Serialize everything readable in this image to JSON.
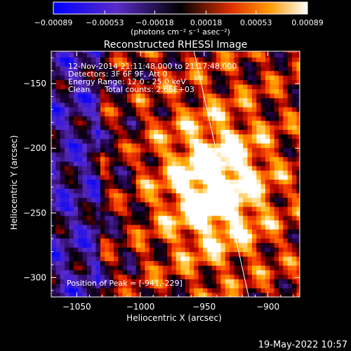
{
  "chart_data": {
    "type": "heatmap",
    "title": "Reconstructed RHESSI Image",
    "xlabel": "Heliocentric X (arcsec)",
    "ylabel": "Heliocentric Y (arcsec)",
    "xlim": [
      -1070,
      -875
    ],
    "ylim": [
      -315,
      -125
    ],
    "x_ticks": [
      -1050,
      -1000,
      -950,
      -900
    ],
    "x_tick_labels": [
      "−1050",
      "−1000",
      "−950",
      "−900"
    ],
    "y_ticks": [
      -150,
      -200,
      -250,
      -300
    ],
    "y_tick_labels": [
      "−150",
      "−200",
      "−250",
      "−300"
    ],
    "colorbar": {
      "ticks": [
        -0.00089,
        -0.00053,
        -0.00018,
        0.00018,
        0.00053,
        0.00089
      ],
      "tick_labels": [
        "−0.00089",
        "−0.00053",
        "−0.00018",
        "0.00018",
        "0.00053",
        "0.00089"
      ],
      "unit_label": "(photons cm⁻² s⁻¹ asec⁻²)",
      "range": [
        -0.00089,
        0.00089
      ]
    },
    "annotations": [
      "12-Nov-2014 21:11:48.000 to 21:17:48.000",
      "Detectors: 3F 6F 9F, Att 0",
      "Energy Range: 12.0 - 25.0 keV",
      "Clean      Total counts: 2.66E+03"
    ],
    "peak_label": "Position of Peak = [-941,-229]",
    "peak": [
      -941,
      -229
    ],
    "limb_line": [
      [
        -958,
        -125
      ],
      [
        -915,
        -315
      ]
    ],
    "grid": false
  },
  "footer": {
    "timestamp": "19-May-2022 10:57"
  },
  "colors": {
    "background": "#000000",
    "text": "#ffffff"
  }
}
